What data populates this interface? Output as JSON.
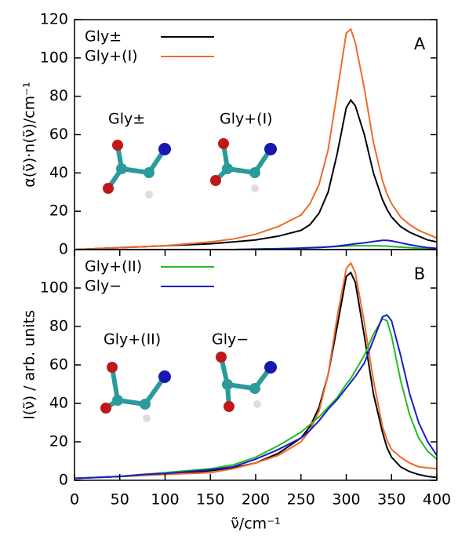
{
  "chart_data": [
    {
      "type": "line",
      "panel_label": "A",
      "y_label": "α(ν̃)·n(ν̃)/cm⁻¹",
      "annotations": [
        "Gly±",
        "Gly+(I)"
      ],
      "xlim": [
        0,
        400
      ],
      "ylim": [
        0,
        120
      ],
      "yticks": [
        0,
        20,
        40,
        60,
        80,
        100,
        120
      ],
      "legend": "top-left",
      "x": [
        0,
        25,
        50,
        75,
        100,
        125,
        150,
        175,
        200,
        225,
        250,
        260,
        270,
        280,
        290,
        300,
        305,
        310,
        320,
        330,
        340,
        345,
        350,
        360,
        370,
        380,
        390,
        400
      ],
      "series": [
        {
          "name": "Gly±",
          "color": "#000000",
          "values": [
            0,
            0.5,
            1,
            1.5,
            2,
            2.5,
            3,
            4,
            5,
            7,
            10,
            13,
            19,
            30,
            50,
            74,
            78,
            75,
            60,
            40,
            26,
            21,
            17,
            12,
            9,
            7,
            5,
            4
          ]
        },
        {
          "name": "Gly+(I)",
          "color": "#f06a2a",
          "values": [
            0,
            0.5,
            1,
            1.5,
            2,
            3,
            4,
            5.5,
            8,
            12,
            18,
            24,
            34,
            52,
            82,
            113,
            115,
            108,
            84,
            56,
            36,
            29,
            24,
            17,
            13,
            10,
            8,
            6
          ]
        },
        {
          "color": "#22bb22",
          "values": [
            0,
            0,
            0,
            0,
            0,
            0,
            0,
            0,
            0.3,
            0.5,
            0.8,
            1,
            1.2,
            1.4,
            1.6,
            1.8,
            1.9,
            2,
            2,
            2,
            1.9,
            1.8,
            1.6,
            1.3,
            1,
            0.7,
            0.5,
            0.3
          ]
        },
        {
          "color": "#1a1acc",
          "values": [
            0,
            0,
            0,
            0,
            0,
            0,
            0,
            0,
            0.2,
            0.4,
            0.7,
            0.9,
            1.1,
            1.4,
            1.8,
            2.4,
            2.7,
            3,
            3.5,
            4.2,
            4.8,
            4.8,
            4.5,
            3.5,
            2.5,
            1.7,
            1,
            0.6
          ]
        }
      ]
    },
    {
      "type": "line",
      "panel_label": "B",
      "y_label": "I(ν̃) / arb. units",
      "x_label": "ν̃/cm⁻¹",
      "annotations": [
        "Gly+(II)",
        "Gly−"
      ],
      "xlim": [
        0,
        400
      ],
      "xticks": [
        0,
        50,
        100,
        150,
        200,
        250,
        300,
        350,
        400
      ],
      "ylim": [
        0,
        120
      ],
      "yticks": [
        0,
        20,
        40,
        60,
        80,
        100
      ],
      "legend": "top-left",
      "x": [
        0,
        25,
        50,
        75,
        100,
        125,
        150,
        175,
        200,
        225,
        250,
        260,
        270,
        280,
        290,
        300,
        305,
        310,
        320,
        330,
        340,
        345,
        350,
        360,
        370,
        380,
        390,
        400
      ],
      "series": [
        {
          "color": "#000000",
          "values": [
            1,
            1.5,
            2,
            2.5,
            3.5,
            4,
            5,
            6.5,
            9,
            14,
            22,
            28,
            38,
            55,
            80,
            106,
            108,
            103,
            75,
            45,
            25,
            17,
            12,
            7,
            4.5,
            3,
            2,
            1.5
          ]
        },
        {
          "color": "#f06a2a",
          "values": [
            1,
            1.5,
            2,
            2.5,
            3,
            3.5,
            4,
            6,
            9,
            13,
            20,
            26,
            36,
            55,
            85,
            110,
            113,
            108,
            82,
            52,
            28,
            21,
            16,
            12,
            9,
            7,
            6.5,
            6
          ]
        },
        {
          "name": "Gly+(II)",
          "color": "#22bb22",
          "values": [
            1,
            1.5,
            2,
            3,
            4,
            5,
            6,
            8,
            12,
            18,
            25,
            29,
            33,
            38,
            43,
            50,
            53,
            57,
            65,
            76,
            84,
            83,
            75,
            52,
            34,
            22,
            15,
            11
          ]
        },
        {
          "name": "Gly−",
          "color": "#1a1acc",
          "values": [
            1,
            1.5,
            2,
            3,
            3.5,
            4.5,
            5.5,
            7,
            11,
            16,
            22,
            26,
            31,
            37,
            42,
            48,
            51,
            54,
            61,
            73,
            85,
            86,
            83,
            65,
            45,
            30,
            20,
            13
          ]
        }
      ]
    }
  ]
}
